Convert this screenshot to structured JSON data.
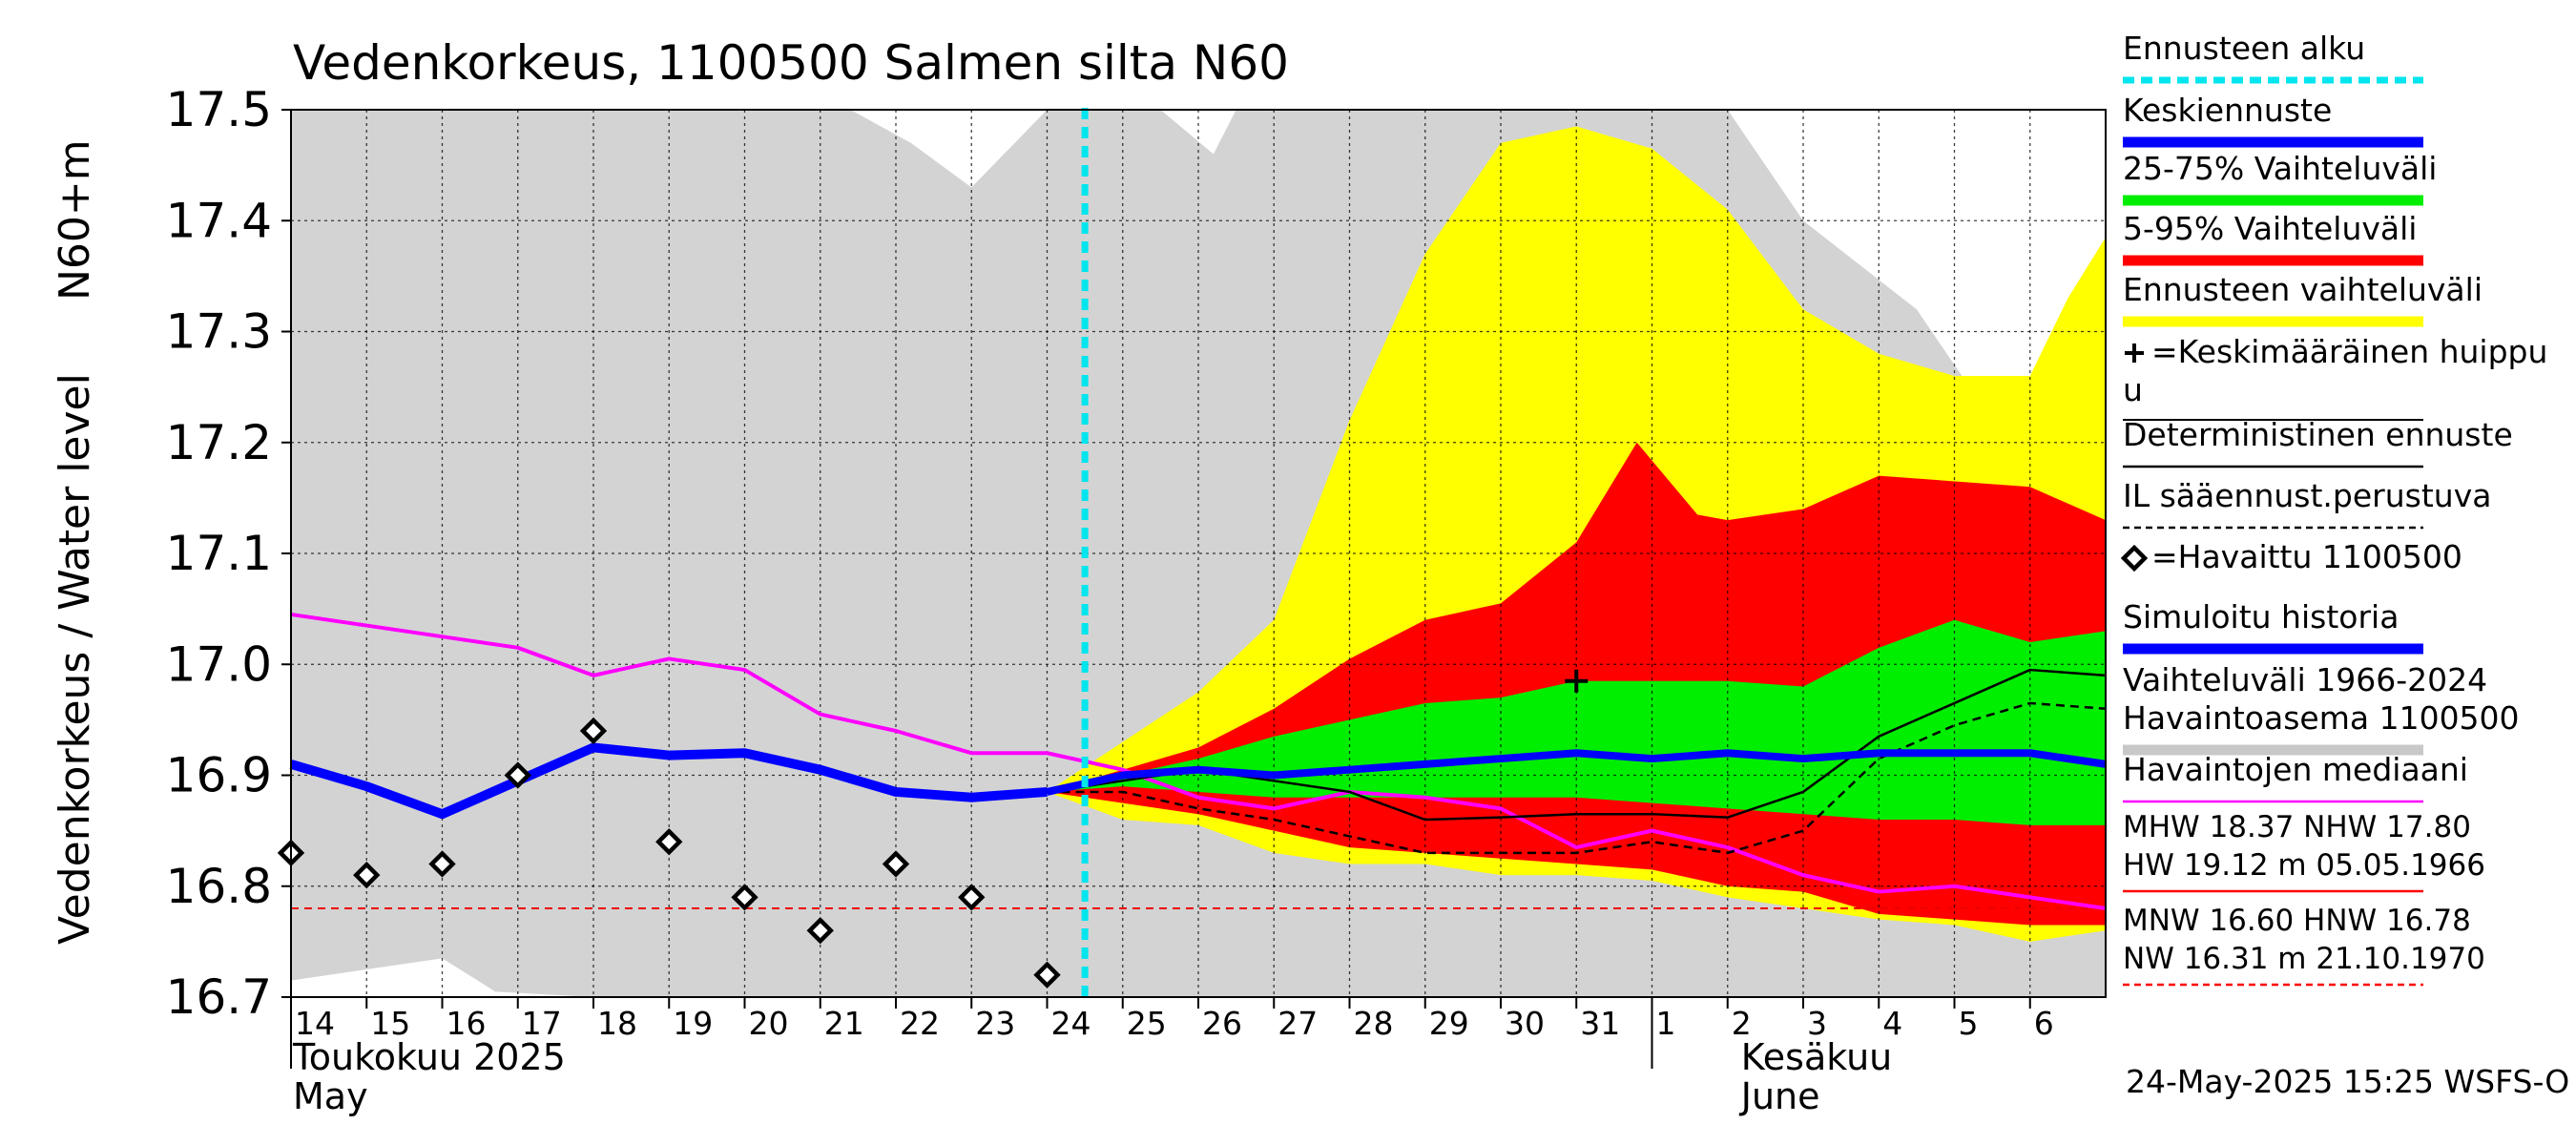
{
  "chart_data": {
    "type": "area",
    "title": "Vedenkorkeus, 1100500 Salmen silta N60",
    "ylabel_fi": "Vedenkorkeus / Water level",
    "ylabel_unit": "N60+m",
    "ylim": [
      16.7,
      17.5
    ],
    "yticks": [
      "16.7",
      "16.8",
      "16.9",
      "17.0",
      "17.1",
      "17.2",
      "17.3",
      "17.4",
      "17.5"
    ],
    "x_start_day": "2025-05-14",
    "x_end_day": "2025-06-07",
    "day_labels": [
      "14",
      "15",
      "16",
      "17",
      "18",
      "19",
      "20",
      "21",
      "22",
      "23",
      "24",
      "25",
      "26",
      "27",
      "28",
      "29",
      "30",
      "31",
      "1",
      "2",
      "3",
      "4",
      "5",
      "6"
    ],
    "month_labels": [
      {
        "fi": "Toukokuu  2025",
        "en": "May"
      },
      {
        "fi": "Kesäkuu",
        "en": "June"
      }
    ],
    "forecast_start_day": 10.5,
    "grid": true,
    "legend_position": "right",
    "legend": [
      {
        "label": "Ennusteen alku",
        "color": "#00e5ee",
        "style": "dashed"
      },
      {
        "label": "Keskiennuste",
        "color": "#0000ff",
        "style": "thick"
      },
      {
        "label": "25-75% Vaihteluväli",
        "color": "#00ee00",
        "style": "thick"
      },
      {
        "label": "5-95% Vaihteluväli",
        "color": "#ff0000",
        "style": "thick"
      },
      {
        "label": "Ennusteen vaihteluväli",
        "color": "#ffff00",
        "style": "thick"
      },
      {
        "label": "=Keskimääräinen huippu",
        "color": "#000000",
        "style": "plus"
      },
      {
        "label": "Deterministinen ennuste",
        "color": "#000000",
        "style": "solid"
      },
      {
        "label": "IL sääennust.perustuva",
        "color": "#000000",
        "style": "dashed"
      },
      {
        "label": "=Havaittu 1100500",
        "color": "#000000",
        "style": "diamond"
      },
      {
        "label": "Simuloitu historia",
        "color": "#0000ff",
        "style": "thick"
      },
      {
        "label": "Vaihteluväli 1966-2024\n Havaintoasema 1100500",
        "color": "#c8c8c8",
        "style": "thick"
      },
      {
        "label": "Havaintojen mediaani",
        "color": "#ff00ff",
        "style": "solid"
      }
    ],
    "stats": [
      {
        "line1": "MHW  18.37 NHW  17.80",
        "line2": "HW  19.12 m 05.05.1966",
        "color": "#ff0000",
        "style": "solid"
      },
      {
        "line1": "MNW  16.60 HNW  16.78",
        "line2": "NW  16.31 m 21.10.1970",
        "color": "#ff0000",
        "style": "dashed"
      }
    ],
    "footer": "24-May-2025 15:25 WSFS-O",
    "hnw_level": 16.78,
    "series": {
      "history_range_upper": [
        [
          0,
          17.5
        ],
        [
          6.5,
          17.5
        ],
        [
          7.4,
          17.5
        ],
        [
          8.2,
          17.47
        ],
        [
          9.0,
          17.43
        ],
        [
          10.0,
          17.5
        ],
        [
          11.5,
          17.5
        ],
        [
          12.2,
          17.46
        ],
        [
          12.5,
          17.5
        ],
        [
          19.0,
          17.5
        ],
        [
          20.0,
          17.4
        ],
        [
          21.5,
          17.32
        ],
        [
          22.5,
          17.22
        ],
        [
          24.0,
          17.22
        ]
      ],
      "history_range_lower": [
        [
          0,
          16.715
        ],
        [
          2.0,
          16.735
        ],
        [
          2.7,
          16.705
        ],
        [
          4.0,
          16.7
        ],
        [
          24.0,
          16.7
        ]
      ],
      "forecast_range_upper": [
        [
          10.0,
          16.885
        ],
        [
          12.0,
          16.975
        ],
        [
          13.0,
          17.04
        ],
        [
          14.0,
          17.22
        ],
        [
          15.0,
          17.37
        ],
        [
          16.0,
          17.47
        ],
        [
          17.0,
          17.485
        ],
        [
          18.0,
          17.465
        ],
        [
          19.0,
          17.41
        ],
        [
          20.0,
          17.32
        ],
        [
          21.0,
          17.28
        ],
        [
          22.0,
          17.26
        ],
        [
          23.0,
          17.26
        ],
        [
          23.5,
          17.33
        ],
        [
          24.0,
          17.385
        ]
      ],
      "forecast_range_lower": [
        [
          10.0,
          16.885
        ],
        [
          11.0,
          16.86
        ],
        [
          12.0,
          16.855
        ],
        [
          13.0,
          16.83
        ],
        [
          14.0,
          16.82
        ],
        [
          15.0,
          16.82
        ],
        [
          16.0,
          16.81
        ],
        [
          17.0,
          16.81
        ],
        [
          18.0,
          16.805
        ],
        [
          19.0,
          16.79
        ],
        [
          20.0,
          16.78
        ],
        [
          21.0,
          16.77
        ],
        [
          22.0,
          16.765
        ],
        [
          23.0,
          16.75
        ],
        [
          24.0,
          16.76
        ]
      ],
      "p5_95_upper": [
        [
          10.0,
          16.885
        ],
        [
          11.0,
          16.905
        ],
        [
          12.0,
          16.925
        ],
        [
          13.0,
          16.96
        ],
        [
          14.0,
          17.005
        ],
        [
          15.0,
          17.04
        ],
        [
          16.0,
          17.055
        ],
        [
          17.0,
          17.11
        ],
        [
          17.8,
          17.2
        ],
        [
          18.6,
          17.135
        ],
        [
          19.0,
          17.13
        ],
        [
          20.0,
          17.14
        ],
        [
          21.0,
          17.17
        ],
        [
          22.0,
          17.165
        ],
        [
          23.0,
          17.16
        ],
        [
          24.0,
          17.13
        ]
      ],
      "p5_95_lower": [
        [
          10.0,
          16.885
        ],
        [
          11.0,
          16.875
        ],
        [
          12.0,
          16.865
        ],
        [
          13.0,
          16.85
        ],
        [
          14.0,
          16.835
        ],
        [
          15.0,
          16.83
        ],
        [
          16.0,
          16.825
        ],
        [
          17.0,
          16.82
        ],
        [
          18.0,
          16.815
        ],
        [
          19.0,
          16.8
        ],
        [
          20.0,
          16.795
        ],
        [
          21.0,
          16.775
        ],
        [
          22.0,
          16.77
        ],
        [
          23.0,
          16.765
        ],
        [
          24.0,
          16.765
        ]
      ],
      "p25_75_upper": [
        [
          10.0,
          16.885
        ],
        [
          11.0,
          16.9
        ],
        [
          12.0,
          16.915
        ],
        [
          13.0,
          16.935
        ],
        [
          14.0,
          16.95
        ],
        [
          15.0,
          16.965
        ],
        [
          16.0,
          16.97
        ],
        [
          17.0,
          16.985
        ],
        [
          18.0,
          16.985
        ],
        [
          19.0,
          16.985
        ],
        [
          20.0,
          16.98
        ],
        [
          21.0,
          17.015
        ],
        [
          22.0,
          17.04
        ],
        [
          23.0,
          17.02
        ],
        [
          24.0,
          17.03
        ]
      ],
      "p25_75_lower": [
        [
          10.0,
          16.885
        ],
        [
          11.0,
          16.89
        ],
        [
          12.0,
          16.885
        ],
        [
          13.0,
          16.88
        ],
        [
          14.0,
          16.88
        ],
        [
          15.0,
          16.88
        ],
        [
          16.0,
          16.88
        ],
        [
          17.0,
          16.88
        ],
        [
          18.0,
          16.875
        ],
        [
          19.0,
          16.87
        ],
        [
          20.0,
          16.865
        ],
        [
          21.0,
          16.86
        ],
        [
          22.0,
          16.86
        ],
        [
          23.0,
          16.855
        ],
        [
          24.0,
          16.855
        ]
      ],
      "simulated_history": [
        [
          0,
          16.91
        ],
        [
          1.0,
          16.89
        ],
        [
          2.0,
          16.865
        ],
        [
          3.0,
          16.895
        ],
        [
          4.0,
          16.925
        ],
        [
          5.0,
          16.918
        ],
        [
          6.0,
          16.92
        ],
        [
          7.0,
          16.905
        ],
        [
          8.0,
          16.885
        ],
        [
          9.0,
          16.88
        ],
        [
          10.0,
          16.885
        ]
      ],
      "mean_forecast": [
        [
          10.0,
          16.885
        ],
        [
          11.0,
          16.9
        ],
        [
          12.0,
          16.905
        ],
        [
          13.0,
          16.9
        ],
        [
          14.0,
          16.905
        ],
        [
          15.0,
          16.91
        ],
        [
          16.0,
          16.915
        ],
        [
          17.0,
          16.92
        ],
        [
          18.0,
          16.915
        ],
        [
          19.0,
          16.92
        ],
        [
          20.0,
          16.915
        ],
        [
          21.0,
          16.92
        ],
        [
          22.0,
          16.92
        ],
        [
          23.0,
          16.92
        ],
        [
          24.0,
          16.91
        ]
      ],
      "deterministic": [
        [
          10.0,
          16.885
        ],
        [
          11.0,
          16.895
        ],
        [
          12.0,
          16.905
        ],
        [
          13.0,
          16.895
        ],
        [
          14.0,
          16.885
        ],
        [
          15.0,
          16.86
        ],
        [
          16.0,
          16.862
        ],
        [
          17.0,
          16.865
        ],
        [
          18.0,
          16.865
        ],
        [
          19.0,
          16.862
        ],
        [
          20.0,
          16.885
        ],
        [
          21.0,
          16.935
        ],
        [
          22.0,
          16.965
        ],
        [
          23.0,
          16.995
        ],
        [
          24.0,
          16.99
        ]
      ],
      "il_forecast": [
        [
          10.0,
          16.885
        ],
        [
          11.0,
          16.885
        ],
        [
          12.0,
          16.87
        ],
        [
          13.0,
          16.86
        ],
        [
          14.0,
          16.845
        ],
        [
          15.0,
          16.83
        ],
        [
          16.0,
          16.83
        ],
        [
          17.0,
          16.83
        ],
        [
          18.0,
          16.84
        ],
        [
          19.0,
          16.83
        ],
        [
          20.0,
          16.85
        ],
        [
          21.0,
          16.915
        ],
        [
          22.0,
          16.945
        ],
        [
          23.0,
          16.965
        ],
        [
          24.0,
          16.96
        ]
      ],
      "observation_median": [
        [
          0,
          17.045
        ],
        [
          1.0,
          17.035
        ],
        [
          2.0,
          17.025
        ],
        [
          3.0,
          17.015
        ],
        [
          4.0,
          16.99
        ],
        [
          5.0,
          17.005
        ],
        [
          6.0,
          16.995
        ],
        [
          7.0,
          16.955
        ],
        [
          8.0,
          16.94
        ],
        [
          9.0,
          16.92
        ],
        [
          10.0,
          16.92
        ],
        [
          11.0,
          16.905
        ],
        [
          12.0,
          16.88
        ],
        [
          13.0,
          16.87
        ],
        [
          14.0,
          16.885
        ],
        [
          15.0,
          16.88
        ],
        [
          16.0,
          16.87
        ],
        [
          17.0,
          16.835
        ],
        [
          18.0,
          16.85
        ],
        [
          19.0,
          16.835
        ],
        [
          20.0,
          16.81
        ],
        [
          21.0,
          16.795
        ],
        [
          22.0,
          16.8
        ],
        [
          23.0,
          16.79
        ],
        [
          24.0,
          16.78
        ]
      ],
      "observed": [
        [
          0,
          16.83
        ],
        [
          1,
          16.81
        ],
        [
          2,
          16.82
        ],
        [
          3,
          16.9
        ],
        [
          4,
          16.94
        ],
        [
          5,
          16.84
        ],
        [
          6,
          16.79
        ],
        [
          7,
          16.76
        ],
        [
          8,
          16.82
        ],
        [
          9,
          16.79
        ],
        [
          10,
          16.72
        ]
      ],
      "mean_peak": [
        [
          17.0,
          16.985
        ]
      ]
    }
  }
}
